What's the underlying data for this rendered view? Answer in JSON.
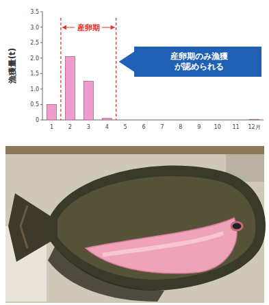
{
  "chart_data": {
    "type": "bar",
    "y_label": "漁獲量(t)",
    "categories": [
      "1",
      "2",
      "3",
      "4",
      "5",
      "6",
      "7",
      "8",
      "9",
      "10",
      "11",
      "12月"
    ],
    "values": [
      0.5,
      2.05,
      1.25,
      0.05,
      0,
      0,
      0,
      0,
      0,
      0,
      0,
      0.02
    ],
    "color": "#f19ccc",
    "ylim": [
      0,
      3.5
    ],
    "yticks": [
      0,
      0.5,
      {
        "value": 1,
        "label": "1.0"
      },
      1.5,
      {
        "value": 2,
        "label": "2.0"
      },
      2.5,
      {
        "value": 3,
        "label": "3.0"
      },
      3.5
    ],
    "spawning_period": {
      "label": "産卵期",
      "from": "2",
      "to": "4"
    },
    "callout": "産卵期のみ漁獲が認められる"
  }
}
